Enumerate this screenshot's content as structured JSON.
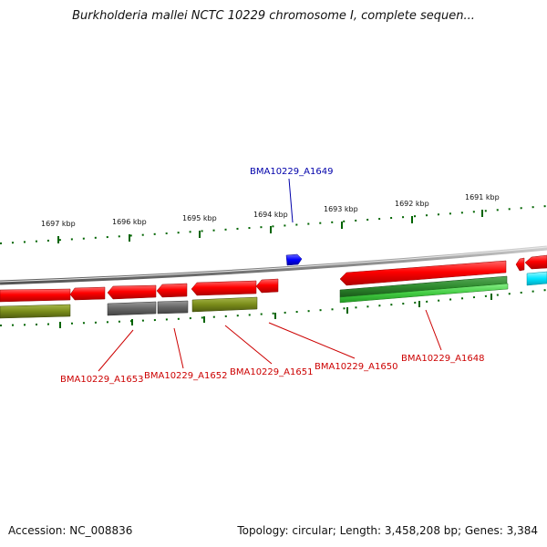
{
  "title": "Burkholderia mallei NCTC 10229 chromosome I, complete sequen...",
  "footer": {
    "accession": "Accession: NC_008836",
    "summary": "Topology: circular; Length: 3,458,208 bp; Genes: 3,384"
  },
  "colors": {
    "cds_forward": "#ff0000",
    "gene_dark_green": "#2e8b2e",
    "gene_light_green": "#44cc44",
    "gene_olive": "#7a8c1a",
    "gene_grey": "#666666",
    "gene_cyan": "#00e5ff",
    "highlight_blue": "#0000ff",
    "tick_green": "#006400",
    "backbone": "#888888",
    "label_red": "#cc0000",
    "label_blue": "#0000aa"
  },
  "ticks": [
    "1697 kbp",
    "1696 kbp",
    "1695 kbp",
    "1694 kbp",
    "1693 kbp",
    "1692 kbp",
    "1691 kbp"
  ],
  "gene_labels": {
    "a1649": "BMA10229_A1649",
    "a1653": "BMA10229_A1653",
    "a1652": "BMA10229_A1652",
    "a1651": "BMA10229_A1651",
    "a1650": "BMA10229_A1650",
    "a1648": "BMA10229_A1648"
  }
}
